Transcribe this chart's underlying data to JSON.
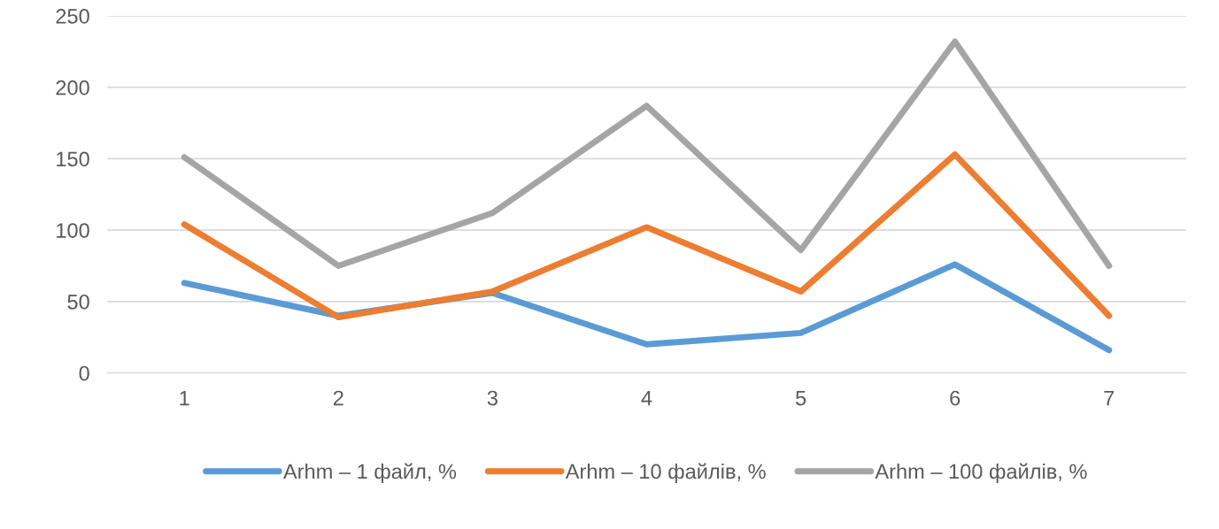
{
  "chart_data": {
    "type": "line",
    "categories": [
      "1",
      "2",
      "3",
      "4",
      "5",
      "6",
      "7"
    ],
    "series": [
      {
        "name": "Arhm – 1 файл, %",
        "color": "#5b9bd5",
        "values": [
          63,
          40,
          56,
          20,
          28,
          76,
          16
        ]
      },
      {
        "name": "Arhm – 10 файлів, %",
        "color": "#ed7d31",
        "values": [
          104,
          39,
          57,
          102,
          57,
          153,
          40
        ]
      },
      {
        "name": "Arhm – 100 файлів, %",
        "color": "#a5a5a5",
        "values": [
          151,
          75,
          112,
          187,
          86,
          232,
          75
        ]
      }
    ],
    "ylim": [
      0,
      250
    ],
    "yticks": [
      0,
      50,
      100,
      150,
      200,
      250
    ],
    "grid": "y",
    "legend": "bottom",
    "marker": "none",
    "line_style": "solid"
  }
}
